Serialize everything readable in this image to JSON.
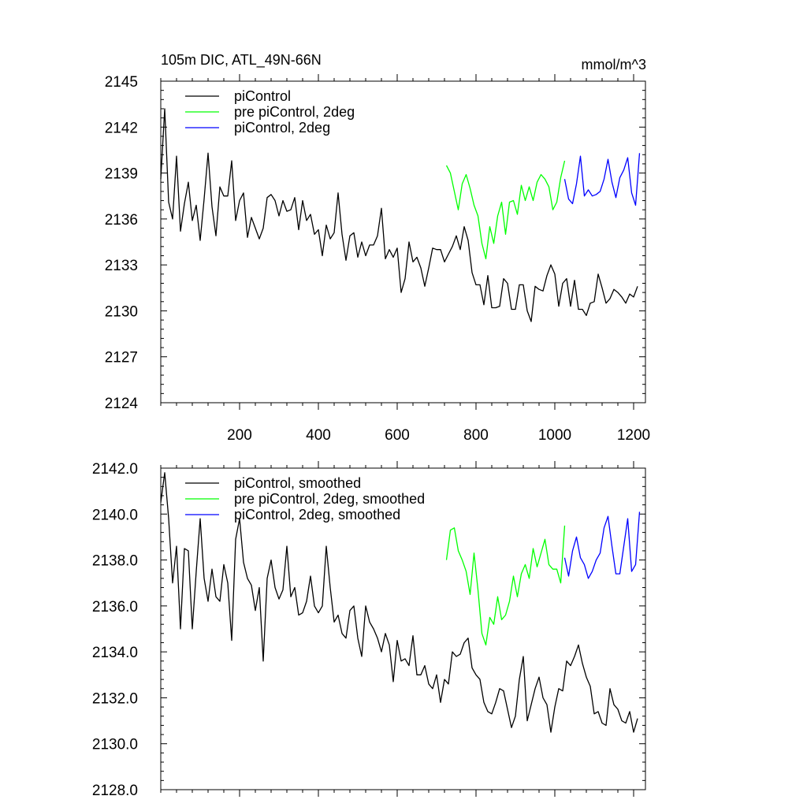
{
  "chart_data": [
    {
      "type": "line",
      "title": "105m DIC, ATL_49N-66N",
      "units": "mmol/m^3",
      "xlim": [
        0,
        1230
      ],
      "ylim": [
        2124,
        2145
      ],
      "x_ticks": [
        200,
        400,
        600,
        800,
        1000,
        1200
      ],
      "x_tick_labels": [
        "200",
        "400",
        "600",
        "800",
        "1000",
        "1200"
      ],
      "y_ticks": [
        2124,
        2127,
        2130,
        2133,
        2136,
        2139,
        2142,
        2145
      ],
      "y_tick_labels": [
        "2124",
        "2127",
        "2130",
        "2133",
        "2136",
        "2139",
        "2142",
        "2145"
      ],
      "legend_position": "top-left",
      "series": [
        {
          "name": "piControl",
          "color": "#000000",
          "x_start": 0,
          "x_step": 10,
          "values": [
            2138.6,
            2143.2,
            2137.1,
            2136.0,
            2140.1,
            2135.2,
            2137.0,
            2138.4,
            2135.9,
            2136.9,
            2134.6,
            2137.3,
            2140.3,
            2136.8,
            2134.9,
            2138.1,
            2137.5,
            2137.5,
            2139.8,
            2135.9,
            2137.2,
            2137.7,
            2134.8,
            2136.1,
            2135.4,
            2134.7,
            2135.4,
            2137.4,
            2137.6,
            2137.2,
            2136.2,
            2137.2,
            2136.5,
            2136.6,
            2137.4,
            2135.3,
            2137.2,
            2135.9,
            2136.3,
            2135.0,
            2135.3,
            2133.6,
            2135.6,
            2134.7,
            2135.1,
            2137.7,
            2135.0,
            2133.3,
            2134.9,
            2135.1,
            2133.5,
            2134.5,
            2133.6,
            2134.3,
            2134.3,
            2134.9,
            2136.7,
            2133.4,
            2134.0,
            2133.5,
            2134.1,
            2131.2,
            2132.1,
            2134.5,
            2133.2,
            2133.5,
            2132.8,
            2131.6,
            2132.8,
            2134.1,
            2134.0,
            2134.0,
            2133.2,
            2133.7,
            2134.2,
            2134.9,
            2134.0,
            2135.5,
            2134.6,
            2132.5,
            2131.7,
            2131.7,
            2130.4,
            2132.3,
            2130.2,
            2130.2,
            2130.3,
            2132.1,
            2131.8,
            2130.1,
            2130.1,
            2131.7,
            2131.7,
            2130.0,
            2129.3,
            2131.6,
            2131.4,
            2131.3,
            2132.3,
            2133.0,
            2132.4,
            2130.3,
            2131.8,
            2132.1,
            2130.3,
            2132.0,
            2130.1,
            2130.1,
            2129.7,
            2130.5,
            2130.6,
            2132.4,
            2131.5,
            2130.5,
            2130.8,
            2131.4,
            2131.2,
            2130.9,
            2130.5,
            2131.1,
            2130.9,
            2131.6
          ]
        },
        {
          "name": "pre piControl, 2deg",
          "color": "#00ff00",
          "x_start": 725,
          "x_step": 10,
          "values": [
            2139.5,
            2139.0,
            2137.8,
            2136.6,
            2138.3,
            2138.9,
            2138.0,
            2136.9,
            2136.2,
            2134.4,
            2133.4,
            2135.5,
            2134.4,
            2136.2,
            2137.1,
            2135.0,
            2137.1,
            2137.2,
            2136.3,
            2138.2,
            2137.2,
            2138.1,
            2137.2,
            2138.4,
            2138.9,
            2138.6,
            2138.1,
            2136.6,
            2137.1,
            2138.7,
            2139.8
          ]
        },
        {
          "name": "piControl, 2deg",
          "color": "#0000ff",
          "x_start": 1025,
          "x_step": 10,
          "values": [
            2138.6,
            2137.3,
            2137.0,
            2138.3,
            2140.1,
            2137.5,
            2137.9,
            2137.5,
            2137.6,
            2137.8,
            2138.6,
            2139.9,
            2138.4,
            2137.4,
            2138.7,
            2139.2,
            2140.0,
            2137.7,
            2136.9,
            2140.3
          ]
        }
      ]
    },
    {
      "type": "line",
      "title": "",
      "xlim": [
        0,
        1230
      ],
      "ylim": [
        2128,
        2142
      ],
      "x_ticks": [
        200,
        400,
        600,
        800,
        1000,
        1200
      ],
      "y_ticks": [
        2128,
        2130,
        2132,
        2134,
        2136,
        2138,
        2140,
        2142
      ],
      "y_tick_labels": [
        "2128.0",
        "2130.0",
        "2132.0",
        "2134.0",
        "2136.0",
        "2138.0",
        "2140.0",
        "2142.0"
      ],
      "legend_position": "top-left",
      "series": [
        {
          "name": "piControl, smoothed",
          "color": "#000000",
          "x_start": 0,
          "x_step": 10,
          "values": [
            2140.5,
            2141.8,
            2139.8,
            2137.0,
            2138.6,
            2135.0,
            2138.5,
            2138.4,
            2135.0,
            2137.5,
            2139.8,
            2137.2,
            2136.2,
            2137.6,
            2136.4,
            2136.2,
            2137.8,
            2137.0,
            2134.5,
            2138.9,
            2139.8,
            2137.9,
            2137.2,
            2136.9,
            2135.8,
            2136.8,
            2133.6,
            2137.2,
            2138.0,
            2136.8,
            2136.3,
            2136.7,
            2138.6,
            2136.4,
            2136.8,
            2135.6,
            2135.7,
            2136.2,
            2137.3,
            2136.0,
            2135.7,
            2136.0,
            2138.6,
            2136.8,
            2135.3,
            2135.6,
            2134.8,
            2134.6,
            2135.8,
            2136.0,
            2134.6,
            2133.8,
            2136.0,
            2135.3,
            2135.0,
            2134.6,
            2134.0,
            2134.8,
            2134.3,
            2132.7,
            2134.5,
            2133.6,
            2133.7,
            2133.4,
            2134.7,
            2133.0,
            2133.0,
            2133.4,
            2132.6,
            2132.4,
            2133.0,
            2131.8,
            2132.8,
            2132.6,
            2134.0,
            2133.8,
            2133.9,
            2134.4,
            2134.6,
            2133.3,
            2133.0,
            2132.8,
            2131.8,
            2131.4,
            2131.3,
            2131.8,
            2132.4,
            2132.3,
            2131.5,
            2130.7,
            2131.2,
            2132.8,
            2133.8,
            2131.0,
            2131.7,
            2132.4,
            2132.9,
            2132.0,
            2131.7,
            2130.5,
            2131.6,
            2132.4,
            2132.3,
            2133.6,
            2133.4,
            2133.8,
            2134.3,
            2133.5,
            2132.9,
            2132.5,
            2131.3,
            2131.4,
            2130.9,
            2130.8,
            2132.4,
            2131.7,
            2131.5,
            2131.0,
            2130.9,
            2131.4,
            2130.5,
            2131.1
          ]
        },
        {
          "name": "pre piControl, 2deg, smoothed",
          "color": "#00ff00",
          "x_start": 725,
          "x_step": 10,
          "values": [
            2138.0,
            2139.3,
            2139.4,
            2138.4,
            2138.0,
            2137.5,
            2136.5,
            2138.3,
            2136.7,
            2134.8,
            2134.3,
            2135.5,
            2135.2,
            2136.4,
            2135.4,
            2135.6,
            2136.2,
            2137.3,
            2136.4,
            2137.4,
            2137.8,
            2137.2,
            2138.5,
            2137.7,
            2138.3,
            2138.9,
            2137.8,
            2137.6,
            2137.6,
            2137.0,
            2139.5
          ]
        },
        {
          "name": "piControl, 2deg, smoothed",
          "color": "#0000ff",
          "x_start": 1025,
          "x_step": 10,
          "values": [
            2138.1,
            2137.3,
            2138.4,
            2139.0,
            2138.1,
            2137.8,
            2137.2,
            2137.5,
            2138.0,
            2138.3,
            2139.4,
            2139.9,
            2138.6,
            2137.4,
            2137.4,
            2138.6,
            2139.8,
            2137.5,
            2137.8,
            2140.1
          ]
        }
      ]
    }
  ]
}
